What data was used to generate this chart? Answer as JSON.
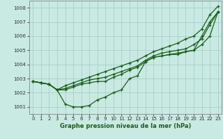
{
  "title": "Graphe pression niveau de la mer (hPa)",
  "bg_color": "#c8eae2",
  "grid_color": "#a8cfc8",
  "line_color": "#1a5c1a",
  "marker": "+",
  "marker_size": 3.5,
  "linewidth": 0.9,
  "xlim": [
    -0.5,
    23.5
  ],
  "ylim": [
    1000.5,
    1008.5
  ],
  "yticks": [
    1001,
    1002,
    1003,
    1004,
    1005,
    1006,
    1007,
    1008
  ],
  "xticks": [
    0,
    1,
    2,
    3,
    4,
    5,
    6,
    7,
    8,
    9,
    10,
    11,
    12,
    13,
    14,
    15,
    16,
    17,
    18,
    19,
    20,
    21,
    22,
    23
  ],
  "lines": [
    [
      1002.8,
      1002.7,
      1002.6,
      1002.2,
      1001.2,
      1001.0,
      1001.0,
      1001.1,
      1001.5,
      1001.7,
      1002.0,
      1002.2,
      1003.0,
      1003.2,
      1004.2,
      1004.5,
      1004.6,
      1004.7,
      1004.7,
      1004.9,
      1005.0,
      1006.0,
      1007.0,
      1007.7
    ],
    [
      1002.8,
      1002.7,
      1002.6,
      1002.2,
      1002.2,
      1002.4,
      1002.6,
      1002.7,
      1002.8,
      1002.8,
      1003.1,
      1003.3,
      1003.6,
      1003.8,
      1004.2,
      1004.5,
      1004.6,
      1004.7,
      1004.8,
      1004.9,
      1005.0,
      1005.4,
      1006.0,
      1007.7
    ],
    [
      1002.8,
      1002.7,
      1002.6,
      1002.2,
      1002.3,
      1002.5,
      1002.7,
      1002.9,
      1003.0,
      1003.1,
      1003.3,
      1003.5,
      1003.7,
      1003.9,
      1004.3,
      1004.6,
      1004.8,
      1004.9,
      1005.0,
      1005.1,
      1005.4,
      1005.8,
      1006.8,
      1007.7
    ],
    [
      1002.8,
      1002.7,
      1002.6,
      1002.2,
      1002.5,
      1002.7,
      1002.9,
      1003.1,
      1003.3,
      1003.5,
      1003.7,
      1003.9,
      1004.1,
      1004.3,
      1004.6,
      1004.9,
      1005.1,
      1005.3,
      1005.5,
      1005.8,
      1006.0,
      1006.5,
      1007.5,
      1008.1
    ]
  ],
  "title_fontsize": 6.0,
  "tick_fontsize": 5.0
}
